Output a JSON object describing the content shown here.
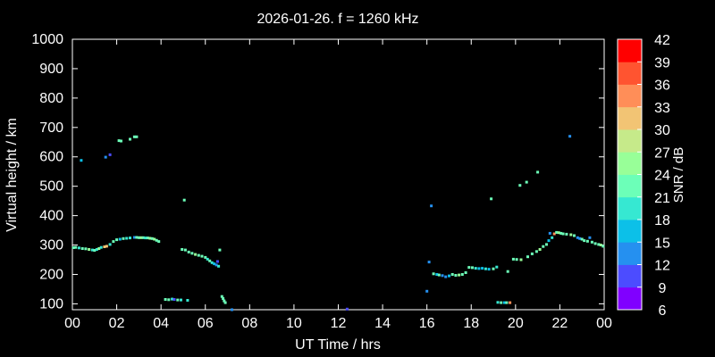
{
  "chart_data": {
    "type": "scatter",
    "title": "2026-01-26. f = 1260 kHz",
    "xlabel": "UT Time / hrs",
    "ylabel": "Virtual height / km",
    "xlim": [
      0,
      24
    ],
    "ylim": [
      80,
      1000
    ],
    "xticks": [
      "00",
      "02",
      "04",
      "06",
      "08",
      "10",
      "12",
      "14",
      "16",
      "18",
      "20",
      "22",
      "00"
    ],
    "yticks": [
      100,
      200,
      300,
      400,
      500,
      600,
      700,
      800,
      900,
      1000
    ],
    "colorbar": {
      "label": "SNR / dB",
      "min": 6,
      "max": 42,
      "ticks": [
        6,
        9,
        12,
        15,
        18,
        21,
        24,
        27,
        30,
        33,
        36,
        39,
        42
      ],
      "colors": [
        "#8000ff",
        "#4c4cff",
        "#2590f0",
        "#0cc0e8",
        "#36e8d2",
        "#6cffb8",
        "#98ff98",
        "#c6ea8a",
        "#f2c474",
        "#ff8e58",
        "#ff5430",
        "#ff0000"
      ]
    },
    "series": [
      {
        "points": [
          [
            0.05,
            291,
            21
          ],
          [
            0.15,
            292,
            22
          ],
          [
            0.3,
            290,
            19
          ],
          [
            0.45,
            288,
            21
          ],
          [
            0.6,
            287,
            23
          ],
          [
            0.75,
            285,
            24
          ],
          [
            0.9,
            283,
            20
          ],
          [
            1.0,
            282,
            22
          ],
          [
            1.1,
            285,
            19
          ],
          [
            1.2,
            288,
            24
          ],
          [
            1.3,
            292,
            20
          ],
          [
            1.45,
            294,
            30
          ],
          [
            1.55,
            296,
            32
          ],
          [
            1.7,
            302,
            19
          ],
          [
            1.85,
            312,
            21
          ],
          [
            2.0,
            318,
            23
          ],
          [
            2.15,
            320,
            17
          ],
          [
            2.3,
            322,
            22
          ],
          [
            2.45,
            323,
            20
          ],
          [
            2.6,
            324,
            18
          ],
          [
            2.8,
            326,
            12
          ],
          [
            2.9,
            326,
            21
          ],
          [
            3.0,
            325,
            22
          ],
          [
            3.1,
            325,
            24
          ],
          [
            3.2,
            325,
            21
          ],
          [
            3.3,
            324,
            20
          ],
          [
            3.4,
            324,
            23
          ],
          [
            3.5,
            323,
            25
          ],
          [
            3.6,
            322,
            22
          ],
          [
            3.7,
            320,
            24
          ],
          [
            3.8,
            316,
            21
          ],
          [
            3.9,
            312,
            23
          ],
          [
            4.95,
            285,
            22
          ],
          [
            5.1,
            283,
            23
          ],
          [
            5.25,
            276,
            21
          ],
          [
            5.4,
            272,
            22
          ],
          [
            5.55,
            268,
            24
          ],
          [
            5.7,
            265,
            22
          ],
          [
            5.85,
            262,
            21
          ],
          [
            6.0,
            258,
            23
          ],
          [
            6.1,
            252,
            20
          ],
          [
            6.2,
            246,
            21
          ],
          [
            6.3,
            240,
            19
          ],
          [
            6.4,
            236,
            17
          ],
          [
            6.5,
            232,
            14
          ],
          [
            6.55,
            244,
            9
          ],
          [
            6.6,
            228,
            19
          ],
          [
            6.65,
            283,
            21
          ],
          [
            4.2,
            115,
            22
          ],
          [
            4.35,
            114,
            21
          ],
          [
            4.5,
            116,
            19
          ],
          [
            4.6,
            115,
            10
          ],
          [
            4.75,
            113,
            22
          ],
          [
            4.9,
            113,
            20
          ],
          [
            5.2,
            112,
            18
          ],
          [
            6.75,
            125,
            23
          ],
          [
            6.8,
            118,
            21
          ],
          [
            6.85,
            110,
            23
          ],
          [
            6.9,
            104,
            22
          ],
          [
            7.2,
            80,
            12
          ],
          [
            0.4,
            588,
            17
          ],
          [
            1.5,
            599,
            12
          ],
          [
            1.7,
            607,
            10
          ],
          [
            2.1,
            655,
            22
          ],
          [
            2.2,
            654,
            22
          ],
          [
            2.6,
            660,
            21
          ],
          [
            2.8,
            668,
            21
          ],
          [
            2.9,
            668,
            22
          ],
          [
            5.05,
            453,
            22
          ],
          [
            12.4,
            82,
            10
          ],
          [
            16.0,
            143,
            12
          ],
          [
            16.1,
            242,
            12
          ],
          [
            16.2,
            433,
            12
          ],
          [
            16.3,
            202,
            21
          ],
          [
            16.45,
            200,
            17
          ],
          [
            16.55,
            198,
            22
          ],
          [
            16.7,
            196,
            14
          ],
          [
            16.85,
            192,
            12
          ],
          [
            17.0,
            195,
            17
          ],
          [
            17.15,
            200,
            23
          ],
          [
            17.3,
            197,
            22
          ],
          [
            17.45,
            198,
            24
          ],
          [
            17.6,
            200,
            22
          ],
          [
            17.75,
            206,
            21
          ],
          [
            17.9,
            224,
            21
          ],
          [
            18.05,
            223,
            22
          ],
          [
            18.2,
            221,
            20
          ],
          [
            18.35,
            220,
            17
          ],
          [
            18.5,
            221,
            15
          ],
          [
            18.65,
            219,
            20
          ],
          [
            18.8,
            218,
            15
          ],
          [
            18.9,
            457,
            21
          ],
          [
            19.0,
            219,
            22
          ],
          [
            19.15,
            225,
            18
          ],
          [
            19.2,
            105,
            18
          ],
          [
            19.35,
            104,
            21
          ],
          [
            19.5,
            104,
            17
          ],
          [
            19.6,
            104,
            22
          ],
          [
            19.75,
            104,
            35
          ],
          [
            19.65,
            210,
            21
          ],
          [
            19.9,
            252,
            23
          ],
          [
            20.05,
            251,
            22
          ],
          [
            20.2,
            503,
            21
          ],
          [
            20.25,
            250,
            24
          ],
          [
            20.5,
            514,
            21
          ],
          [
            20.55,
            260,
            22
          ],
          [
            20.75,
            270,
            21
          ],
          [
            20.95,
            278,
            22
          ],
          [
            21.0,
            548,
            21
          ],
          [
            21.1,
            285,
            24
          ],
          [
            21.25,
            295,
            21
          ],
          [
            21.4,
            302,
            23
          ],
          [
            21.5,
            315,
            17
          ],
          [
            21.55,
            340,
            12
          ],
          [
            21.65,
            325,
            19
          ],
          [
            21.75,
            338,
            33
          ],
          [
            21.85,
            343,
            22
          ],
          [
            21.95,
            342,
            24
          ],
          [
            22.05,
            340,
            23
          ],
          [
            22.15,
            338,
            21
          ],
          [
            22.3,
            337,
            22
          ],
          [
            22.45,
            670,
            12
          ],
          [
            22.5,
            335,
            24
          ],
          [
            22.65,
            332,
            21
          ],
          [
            22.8,
            325,
            14
          ],
          [
            22.9,
            322,
            12
          ],
          [
            23.0,
            320,
            21
          ],
          [
            23.1,
            315,
            22
          ],
          [
            23.25,
            313,
            21
          ],
          [
            23.35,
            325,
            12
          ],
          [
            23.45,
            310,
            22
          ],
          [
            23.6,
            305,
            21
          ],
          [
            23.75,
            302,
            23
          ],
          [
            23.85,
            300,
            24
          ],
          [
            23.95,
            296,
            22
          ]
        ]
      }
    ]
  }
}
